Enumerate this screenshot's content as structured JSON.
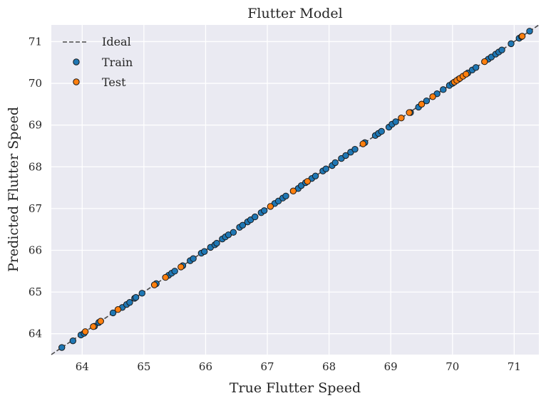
{
  "chart_data": {
    "type": "scatter",
    "title": "Flutter Model",
    "xlabel": "True Flutter Speed",
    "ylabel": "Predicted Flutter Speed",
    "xlim": [
      63.5,
      71.4
    ],
    "ylim": [
      63.5,
      71.4
    ],
    "xticks": [
      "64",
      "65",
      "66",
      "67",
      "68",
      "69",
      "70",
      "71"
    ],
    "yticks": [
      "64",
      "65",
      "66",
      "67",
      "68",
      "69",
      "70",
      "71"
    ],
    "grid": true,
    "legend_position": "top-left",
    "ideal_line": {
      "name": "Ideal",
      "style": "dashed",
      "color": "#4a4a4a",
      "x": [
        63.5,
        71.4
      ],
      "y": [
        63.5,
        71.4
      ]
    },
    "series": [
      {
        "name": "Train",
        "color": "#1f77b4",
        "points": [
          [
            63.67,
            63.67
          ],
          [
            63.85,
            63.83
          ],
          [
            63.98,
            63.97
          ],
          [
            64.03,
            64.01
          ],
          [
            64.2,
            64.18
          ],
          [
            64.27,
            64.27
          ],
          [
            64.5,
            64.5
          ],
          [
            64.65,
            64.63
          ],
          [
            64.72,
            64.7
          ],
          [
            64.77,
            64.75
          ],
          [
            64.85,
            64.85
          ],
          [
            64.87,
            64.87
          ],
          [
            64.97,
            64.97
          ],
          [
            65.2,
            65.2
          ],
          [
            65.4,
            65.4
          ],
          [
            65.45,
            65.45
          ],
          [
            65.5,
            65.5
          ],
          [
            65.63,
            65.63
          ],
          [
            65.75,
            65.75
          ],
          [
            65.8,
            65.8
          ],
          [
            65.93,
            65.93
          ],
          [
            65.98,
            65.97
          ],
          [
            66.08,
            66.07
          ],
          [
            66.15,
            66.13
          ],
          [
            66.18,
            66.17
          ],
          [
            66.27,
            66.27
          ],
          [
            66.32,
            66.32
          ],
          [
            66.37,
            66.37
          ],
          [
            66.45,
            66.43
          ],
          [
            66.55,
            66.55
          ],
          [
            66.6,
            66.6
          ],
          [
            66.68,
            66.68
          ],
          [
            66.73,
            66.73
          ],
          [
            66.8,
            66.8
          ],
          [
            66.9,
            66.9
          ],
          [
            66.95,
            66.95
          ],
          [
            67.12,
            67.12
          ],
          [
            67.18,
            67.18
          ],
          [
            67.25,
            67.25
          ],
          [
            67.3,
            67.3
          ],
          [
            67.5,
            67.48
          ],
          [
            67.55,
            67.55
          ],
          [
            67.62,
            67.62
          ],
          [
            67.72,
            67.72
          ],
          [
            67.78,
            67.78
          ],
          [
            67.9,
            67.9
          ],
          [
            67.95,
            67.95
          ],
          [
            68.05,
            68.03
          ],
          [
            68.1,
            68.1
          ],
          [
            68.2,
            68.2
          ],
          [
            68.27,
            68.27
          ],
          [
            68.35,
            68.35
          ],
          [
            68.42,
            68.42
          ],
          [
            68.58,
            68.58
          ],
          [
            68.75,
            68.75
          ],
          [
            68.8,
            68.8
          ],
          [
            68.85,
            68.85
          ],
          [
            68.97,
            68.95
          ],
          [
            69.02,
            69.02
          ],
          [
            69.08,
            69.08
          ],
          [
            69.32,
            69.3
          ],
          [
            69.45,
            69.43
          ],
          [
            69.5,
            69.5
          ],
          [
            69.58,
            69.58
          ],
          [
            69.75,
            69.75
          ],
          [
            69.85,
            69.85
          ],
          [
            69.95,
            69.95
          ],
          [
            70.0,
            70.0
          ],
          [
            70.1,
            70.1
          ],
          [
            70.25,
            70.25
          ],
          [
            70.32,
            70.32
          ],
          [
            70.38,
            70.38
          ],
          [
            70.58,
            70.58
          ],
          [
            70.63,
            70.63
          ],
          [
            70.7,
            70.7
          ],
          [
            70.75,
            70.75
          ],
          [
            70.8,
            70.8
          ],
          [
            70.95,
            70.95
          ],
          [
            71.08,
            71.08
          ],
          [
            71.12,
            71.12
          ],
          [
            71.25,
            71.25
          ]
        ]
      },
      {
        "name": "Test",
        "color": "#ff7f0e",
        "points": [
          [
            64.05,
            64.05
          ],
          [
            64.18,
            64.17
          ],
          [
            64.3,
            64.3
          ],
          [
            64.58,
            64.58
          ],
          [
            65.17,
            65.17
          ],
          [
            65.35,
            65.35
          ],
          [
            65.6,
            65.6
          ],
          [
            67.05,
            67.05
          ],
          [
            67.42,
            67.42
          ],
          [
            67.65,
            67.65
          ],
          [
            68.55,
            68.55
          ],
          [
            69.17,
            69.17
          ],
          [
            69.3,
            69.3
          ],
          [
            69.5,
            69.5
          ],
          [
            69.68,
            69.68
          ],
          [
            70.03,
            70.03
          ],
          [
            70.07,
            70.07
          ],
          [
            70.12,
            70.12
          ],
          [
            70.17,
            70.17
          ],
          [
            70.22,
            70.22
          ],
          [
            70.52,
            70.52
          ],
          [
            71.13,
            71.13
          ]
        ]
      }
    ]
  }
}
